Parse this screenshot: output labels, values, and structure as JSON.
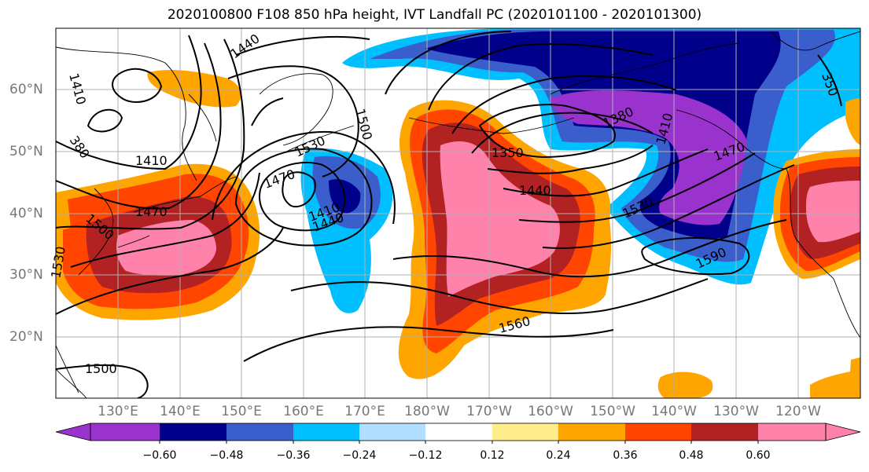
{
  "title": "2020100800 F108 850 hPa height, IVT Landfall PC (2020101100 - 2020101300)",
  "lat_labels": [
    "60°N",
    "50°N",
    "40°N",
    "30°N",
    "20°N"
  ],
  "lon_labels": [
    "130°E",
    "140°E",
    "150°E",
    "160°E",
    "170°E",
    "180°W",
    "170°W",
    "160°W",
    "150°W",
    "140°W",
    "130°W",
    "120°W"
  ],
  "colorbar": {
    "ticks": [
      "−0.60",
      "−0.48",
      "−0.36",
      "−0.24",
      "−0.12",
      "0.12",
      "0.24",
      "0.36",
      "0.48",
      "0.60"
    ],
    "colors": [
      "#9a32cd",
      "#00008b",
      "#3a5fcd",
      "#00bfff",
      "#b2dfff",
      "#ffffff",
      "#ffec8b",
      "#ffa500",
      "#ff4500",
      "#b22222",
      "#ff82ab"
    ]
  },
  "contour_labels": [
    "1440",
    "1410",
    "380",
    "1410",
    "1470",
    "1500",
    "1530",
    "1470",
    "1500",
    "1530",
    "1410",
    "1440",
    "1380",
    "1350",
    "1440",
    "1410",
    "1470",
    "1530",
    "1590",
    "1560",
    "1500",
    "350"
  ]
}
